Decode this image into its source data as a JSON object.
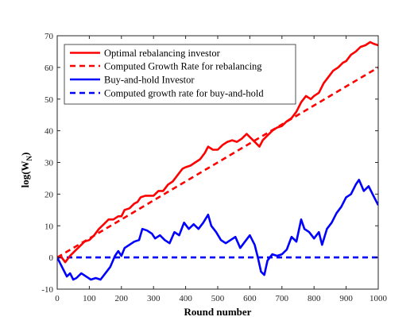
{
  "chart_data": {
    "type": "line",
    "xlabel": "Round number",
    "ylabel_main": "log(W",
    "ylabel_sub": "N",
    "ylabel_close": ")",
    "xlim": [
      0,
      1000
    ],
    "ylim": [
      -10,
      70
    ],
    "xticks": [
      "0",
      "100",
      "200",
      "300",
      "400",
      "500",
      "600",
      "700",
      "800",
      "900",
      "1000"
    ],
    "yticks": [
      "-10",
      "0",
      "10",
      "20",
      "30",
      "40",
      "50",
      "60",
      "70"
    ],
    "grid": false,
    "legend_position": "top-left",
    "series": [
      {
        "name": "Optimal rebalancing investor",
        "color": "#ff0000",
        "style": "solid",
        "x": [
          0,
          10,
          25,
          40,
          55,
          70,
          85,
          100,
          115,
          130,
          145,
          160,
          175,
          190,
          200,
          210,
          225,
          240,
          250,
          260,
          275,
          290,
          300,
          315,
          330,
          345,
          360,
          375,
          390,
          400,
          415,
          430,
          445,
          460,
          470,
          485,
          500,
          515,
          530,
          545,
          560,
          575,
          590,
          600,
          615,
          630,
          640,
          655,
          670,
          685,
          700,
          715,
          730,
          745,
          760,
          775,
          790,
          800,
          815,
          830,
          845,
          860,
          875,
          890,
          900,
          915,
          930,
          945,
          960,
          975,
          985,
          1000
        ],
        "y": [
          0,
          0.5,
          -1.5,
          0.5,
          2.0,
          3.5,
          5.0,
          5.5,
          7.0,
          9.0,
          10.5,
          12.0,
          12.0,
          13.0,
          13.0,
          15.0,
          15.5,
          17.0,
          17.5,
          19.0,
          19.5,
          19.5,
          19.5,
          21.0,
          21.0,
          23.0,
          24.0,
          26.0,
          28.0,
          28.5,
          29.0,
          30.0,
          31.0,
          33.0,
          35.0,
          34.0,
          34.0,
          35.5,
          36.5,
          37.0,
          36.5,
          37.5,
          39.0,
          38.0,
          36.5,
          35.0,
          37.0,
          38.5,
          40.0,
          41.0,
          41.5,
          43.0,
          44.0,
          46.0,
          49.0,
          51.0,
          50.0,
          51.0,
          52.0,
          55.0,
          57.0,
          59.0,
          60.0,
          61.5,
          62.0,
          64.0,
          65.0,
          66.5,
          67.0,
          68.0,
          67.5,
          67.0
        ]
      },
      {
        "name": "Computed Growth Rate for rebalancing",
        "color": "#ff0000",
        "style": "dashed",
        "x": [
          0,
          1000
        ],
        "y": [
          0,
          60
        ]
      },
      {
        "name": "Buy-and-hold Investor",
        "color": "#0000ff",
        "style": "solid",
        "x": [
          0,
          10,
          20,
          30,
          40,
          50,
          60,
          75,
          90,
          105,
          120,
          135,
          150,
          165,
          180,
          190,
          200,
          210,
          225,
          240,
          255,
          265,
          280,
          295,
          305,
          320,
          335,
          350,
          365,
          380,
          395,
          410,
          425,
          440,
          455,
          470,
          480,
          495,
          510,
          525,
          540,
          555,
          570,
          585,
          600,
          615,
          625,
          635,
          645,
          655,
          670,
          685,
          700,
          715,
          730,
          745,
          760,
          770,
          785,
          800,
          815,
          825,
          840,
          855,
          870,
          885,
          900,
          915,
          930,
          940,
          955,
          970,
          985,
          1000
        ],
        "y": [
          0,
          -2.0,
          -4.0,
          -6.0,
          -5.0,
          -7.0,
          -6.5,
          -5.0,
          -6.0,
          -7.0,
          -6.5,
          -7.0,
          -5.0,
          -3.0,
          0.5,
          2.0,
          0.5,
          3.0,
          4.0,
          5.0,
          5.5,
          9.0,
          8.5,
          7.5,
          6.0,
          7.0,
          5.5,
          4.5,
          8.0,
          7.0,
          11.0,
          9.0,
          10.5,
          9.0,
          11.0,
          13.5,
          10.0,
          8.0,
          5.5,
          4.5,
          5.5,
          6.5,
          3.0,
          5.0,
          7.0,
          4.0,
          0.0,
          -4.5,
          -5.5,
          -1.0,
          1.0,
          0.5,
          1.0,
          2.5,
          6.5,
          5.0,
          12.0,
          9.0,
          8.0,
          6.0,
          8.0,
          4.0,
          9.0,
          11.0,
          14.0,
          16.0,
          19.0,
          20.0,
          23.0,
          24.5,
          21.0,
          22.5,
          19.5,
          16.5
        ]
      },
      {
        "name": "Computed growth rate for buy-and-hold",
        "color": "#0000ff",
        "style": "dashed",
        "x": [
          0,
          1000
        ],
        "y": [
          0,
          0
        ]
      }
    ]
  }
}
